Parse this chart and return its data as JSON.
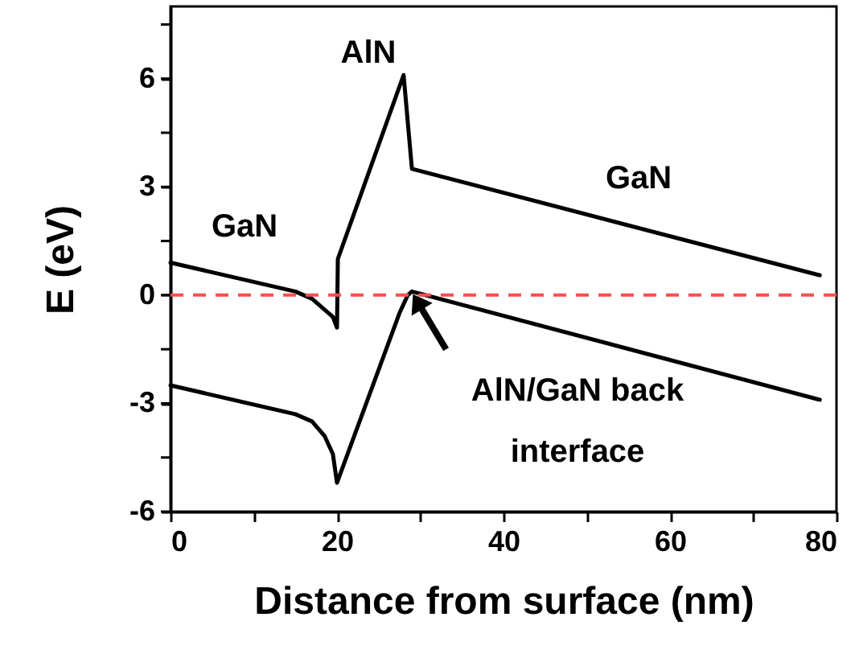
{
  "chart_data": {
    "type": "line",
    "xlabel": "Distance from surface (nm)",
    "ylabel": "E (eV)",
    "xlim": [
      0,
      80
    ],
    "ylim": [
      -6,
      8
    ],
    "xticks": [
      0,
      {
        "value": 10,
        "label": null
      },
      20,
      {
        "value": 30,
        "label": null
      },
      40,
      {
        "value": 50,
        "label": null
      },
      60,
      {
        "value": 70,
        "label": null
      },
      80
    ],
    "yticks": [
      -6,
      {
        "value": -4.5,
        "label": null
      },
      -3,
      {
        "value": -1.5,
        "label": null
      },
      0,
      {
        "value": 1.5,
        "label": null
      },
      3,
      {
        "value": 4.5,
        "label": null
      },
      6,
      {
        "value": 7.5,
        "label": null
      }
    ],
    "grid": false,
    "marker": "none",
    "line_style": "solid",
    "series": [
      {
        "color": "#000000",
        "x": [
          0,
          15,
          17,
          18.5,
          19.5,
          20,
          20.1,
          28,
          29,
          78
        ],
        "values": [
          0.9,
          0.1,
          -0.1,
          -0.4,
          -0.6,
          -0.9,
          1.0,
          6.1,
          3.5,
          0.55
        ]
      },
      {
        "color": "#000000",
        "x": [
          0,
          15,
          17,
          18.5,
          19.5,
          20,
          27.5,
          28.5,
          29,
          78
        ],
        "values": [
          -2.5,
          -3.3,
          -3.5,
          -3.9,
          -4.4,
          -5.2,
          -0.5,
          0,
          0.1,
          -2.9
        ]
      }
    ],
    "ref_lines": [
      {
        "axis": "y",
        "value": 0,
        "color": "#ff4d4d",
        "line_style": "dashed"
      }
    ],
    "annotations": [
      "GaN",
      "AlN",
      "GaN",
      "AlN/GaN back interface"
    ]
  }
}
